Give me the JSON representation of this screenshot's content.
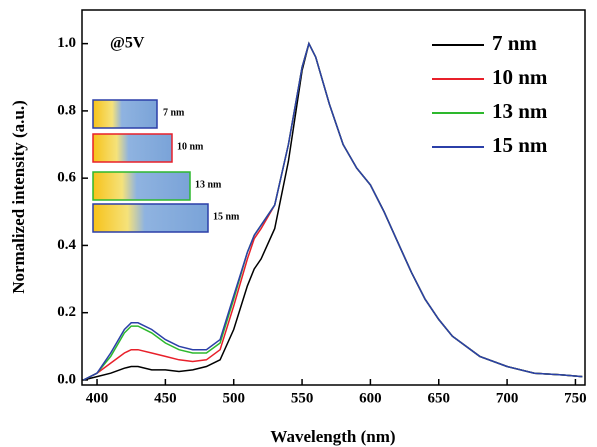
{
  "chart_data": {
    "type": "line",
    "annotation": "@5V",
    "x_label": "Wavelength (nm)",
    "y_label": "Normalized intensity (a.u.)",
    "inset_labels": [
      "7 nm",
      "10 nm",
      "13 nm",
      "15 nm"
    ],
    "x": [
      390,
      400,
      410,
      420,
      425,
      430,
      440,
      450,
      460,
      470,
      480,
      490,
      500,
      510,
      515,
      520,
      530,
      540,
      550,
      555,
      560,
      570,
      580,
      590,
      600,
      610,
      620,
      630,
      640,
      650,
      660,
      680,
      700,
      720,
      740,
      755
    ],
    "series": [
      {
        "name": "7 nm",
        "color": "#000000",
        "values": [
          0.0,
          0.01,
          0.02,
          0.035,
          0.04,
          0.04,
          0.03,
          0.03,
          0.025,
          0.03,
          0.04,
          0.06,
          0.15,
          0.28,
          0.33,
          0.36,
          0.45,
          0.65,
          0.92,
          1.0,
          0.96,
          0.82,
          0.7,
          0.63,
          0.58,
          0.5,
          0.41,
          0.32,
          0.24,
          0.18,
          0.13,
          0.07,
          0.04,
          0.02,
          0.015,
          0.01
        ]
      },
      {
        "name": "10 nm",
        "color": "#e8202a",
        "values": [
          0.0,
          0.02,
          0.05,
          0.08,
          0.09,
          0.09,
          0.08,
          0.07,
          0.06,
          0.055,
          0.06,
          0.09,
          0.22,
          0.36,
          0.42,
          0.45,
          0.52,
          0.7,
          0.93,
          1.0,
          0.96,
          0.82,
          0.7,
          0.63,
          0.58,
          0.5,
          0.41,
          0.32,
          0.24,
          0.18,
          0.13,
          0.07,
          0.04,
          0.02,
          0.015,
          0.01
        ]
      },
      {
        "name": "13 nm",
        "color": "#2db82d",
        "values": [
          0.0,
          0.02,
          0.07,
          0.14,
          0.16,
          0.16,
          0.14,
          0.11,
          0.09,
          0.08,
          0.08,
          0.11,
          0.24,
          0.38,
          0.43,
          0.46,
          0.52,
          0.7,
          0.93,
          1.0,
          0.96,
          0.82,
          0.7,
          0.63,
          0.58,
          0.5,
          0.41,
          0.32,
          0.24,
          0.18,
          0.13,
          0.07,
          0.04,
          0.02,
          0.015,
          0.01
        ]
      },
      {
        "name": "15 nm",
        "color": "#2b3fa8",
        "values": [
          0.0,
          0.02,
          0.08,
          0.15,
          0.17,
          0.17,
          0.15,
          0.12,
          0.1,
          0.09,
          0.09,
          0.12,
          0.25,
          0.38,
          0.43,
          0.46,
          0.52,
          0.7,
          0.93,
          1.0,
          0.96,
          0.82,
          0.7,
          0.63,
          0.58,
          0.5,
          0.41,
          0.32,
          0.24,
          0.18,
          0.13,
          0.07,
          0.04,
          0.02,
          0.015,
          0.01
        ]
      }
    ],
    "xlim": [
      389,
      757
    ],
    "ylim": [
      -0.015,
      1.1
    ],
    "xticks": [
      400,
      450,
      500,
      550,
      600,
      650,
      700,
      750
    ],
    "yticks": [
      {
        "value": 0,
        "label": "0.0"
      },
      0.2,
      0.4,
      0.6,
      0.8,
      {
        "value": 1,
        "label": "1.0"
      }
    ],
    "legend": "top-right"
  }
}
